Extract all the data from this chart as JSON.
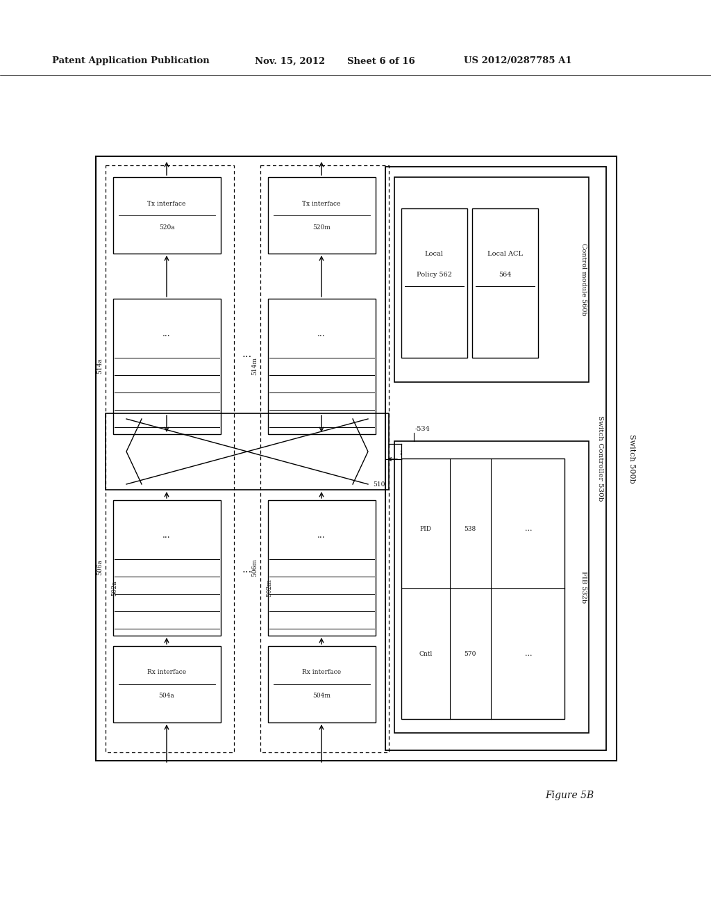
{
  "bg_color": "#ffffff",
  "dark": "#1a1a1a",
  "header_text": "Patent Application Publication",
  "header_date": "Nov. 15, 2012",
  "header_sheet": "Sheet 6 of 16",
  "header_patent": "US 2012/0287785 A1",
  "figure_label": "Figure 5B"
}
